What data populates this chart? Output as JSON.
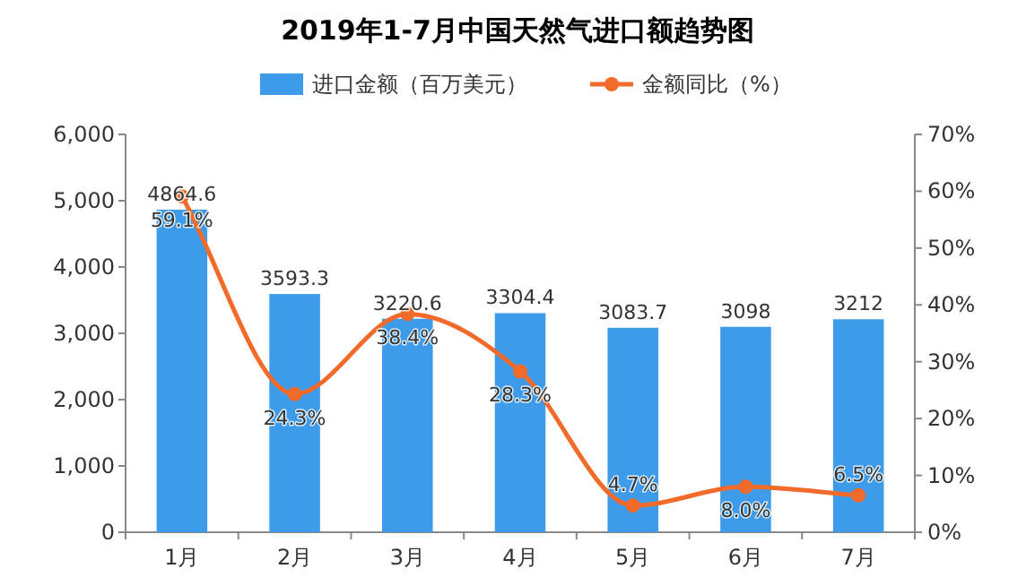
{
  "chart_data": {
    "type": "bar",
    "title": "2019年1-7月中国天然气进口额趋势图",
    "categories": [
      "1月",
      "2月",
      "3月",
      "4月",
      "5月",
      "6月",
      "7月"
    ],
    "series": [
      {
        "name": "进口金额（百万美元）",
        "color": "#3d9be9",
        "values": [
          4864.6,
          3593.3,
          3220.6,
          3304.4,
          3083.7,
          3098,
          3212
        ],
        "value_labels": [
          "4864.6",
          "3593.3",
          "3220.6",
          "3304.4",
          "3083.7",
          "3098",
          "3212"
        ]
      },
      {
        "name": "金额同比（%）",
        "type": "line",
        "axis": "y2",
        "color": "#f26b2a",
        "marker": "circle",
        "values": [
          59.1,
          24.3,
          38.4,
          28.3,
          4.7,
          8.0,
          6.5
        ],
        "value_labels": [
          "59.1%",
          "24.3%",
          "38.4%",
          "28.3%",
          "4.7%",
          "8.0%",
          "6.5%"
        ]
      }
    ],
    "ylim": [
      0,
      6000
    ],
    "yticks": [
      0,
      {
        "value": 1000,
        "label": "1,000"
      },
      {
        "value": 2000,
        "label": "2,000"
      },
      {
        "value": 3000,
        "label": "3,000"
      },
      {
        "value": 4000,
        "label": "4,000"
      },
      {
        "value": 5000,
        "label": "5,000"
      },
      {
        "value": 6000,
        "label": "6,000"
      }
    ],
    "y2lim": [
      0,
      70
    ],
    "y2ticks": [
      {
        "value": 0,
        "label": "0%"
      },
      {
        "value": 10,
        "label": "10%"
      },
      {
        "value": 20,
        "label": "20%"
      },
      {
        "value": 30,
        "label": "30%"
      },
      {
        "value": 40,
        "label": "40%"
      },
      {
        "value": 50,
        "label": "50%"
      },
      {
        "value": 60,
        "label": "60%"
      },
      {
        "value": 70,
        "label": "70%"
      }
    ],
    "legend": "top",
    "grid": false
  }
}
